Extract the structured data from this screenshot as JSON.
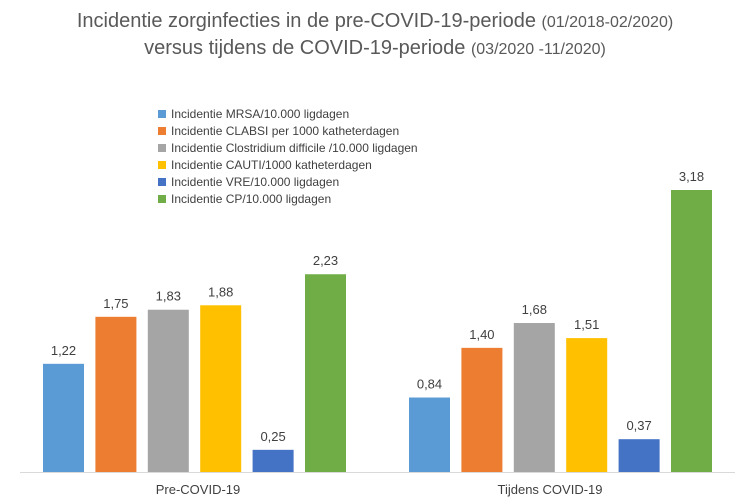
{
  "title": {
    "line1_main": "Incidentie zorginfecties in de pre-COVID-19-periode",
    "line1_small": "(01/2018-02/2020)",
    "line2_main": "versus tijdens de COVID-19-periode",
    "line2_small": "(03/2020 -11/2020)"
  },
  "chart_data": {
    "type": "bar",
    "categories": [
      "Pre-COVID-19",
      "Tijdens COVID-19"
    ],
    "series": [
      {
        "name": "Incidentie MRSA/10.000 ligdagen",
        "color": "#5B9BD5",
        "values": [
          1.22,
          0.84
        ],
        "labels": [
          "1,22",
          "0,84"
        ]
      },
      {
        "name": "Incidentie CLABSI per 1000 katheterdagen",
        "color": "#ED7D31",
        "values": [
          1.75,
          1.4
        ],
        "labels": [
          "1,75",
          "1,40"
        ]
      },
      {
        "name": "Incidentie Clostridium difficile /10.000 ligdagen",
        "color": "#A5A5A5",
        "values": [
          1.83,
          1.68
        ],
        "labels": [
          "1,83",
          "1,68"
        ]
      },
      {
        "name": "Incidentie CAUTI/1000 katheterdagen",
        "color": "#FFC000",
        "values": [
          1.88,
          1.51
        ],
        "labels": [
          "1,88",
          "1,51"
        ]
      },
      {
        "name": "Incidentie VRE/10.000 ligdagen",
        "color": "#4472C4",
        "values": [
          0.25,
          0.37
        ],
        "labels": [
          "0,25",
          "0,37"
        ]
      },
      {
        "name": "Incidentie CP/10.000 ligdagen",
        "color": "#70AD47",
        "values": [
          2.23,
          3.18
        ],
        "labels": [
          "2,23",
          "3,18"
        ]
      }
    ],
    "ylim": [
      0,
      3.5
    ],
    "grid": false,
    "legend_position": "top-left"
  }
}
